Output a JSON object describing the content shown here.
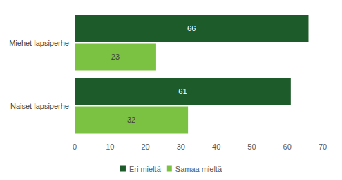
{
  "chart_data": {
    "type": "bar",
    "orientation": "horizontal",
    "categories": [
      "Miehet lapsiperhe",
      "Naiset lapsiperhe"
    ],
    "series": [
      {
        "name": "Eri mieltä",
        "color": "#1e5b2a",
        "values": [
          66,
          61
        ]
      },
      {
        "name": "Samaa mieltä",
        "color": "#7cc242",
        "values": [
          23,
          32
        ]
      }
    ],
    "xlim": [
      0,
      70
    ],
    "xticks": [
      0,
      10,
      20,
      30,
      40,
      50,
      60,
      70
    ],
    "grid": false,
    "data_labels": true,
    "legend": "bottom"
  }
}
